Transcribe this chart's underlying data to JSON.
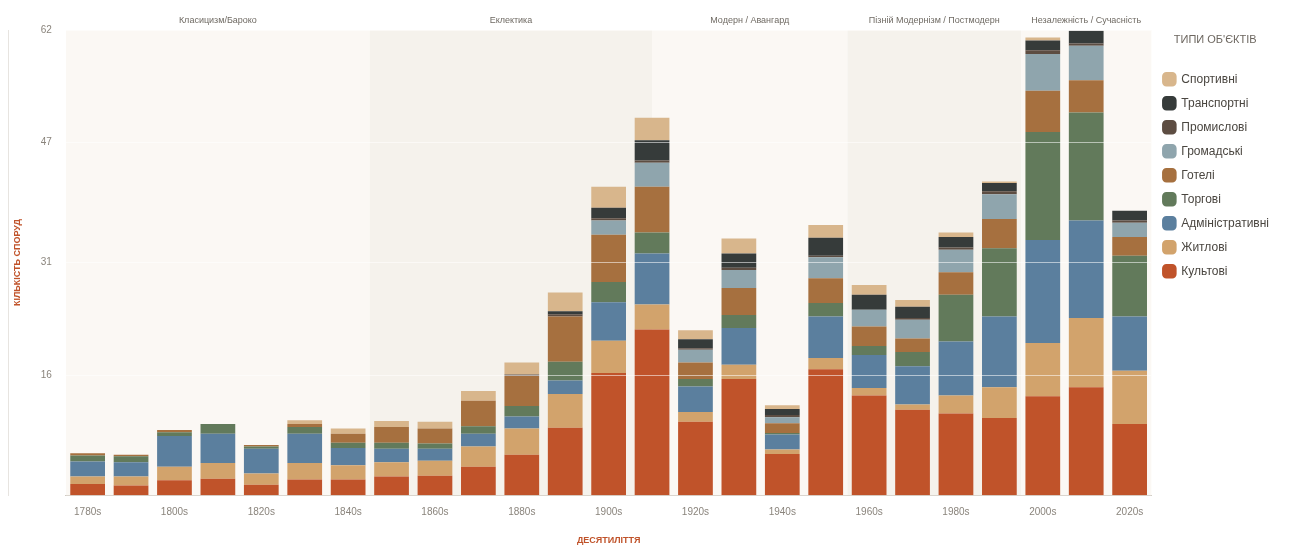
{
  "chart_data": {
    "type": "bar",
    "stacked": true,
    "xlabel": "ДЕСЯТИЛІТТЯ",
    "ylabel": "КІЛЬКІСТЬ СПОРУД",
    "legend_title": "ТИПИ ОБ'ЄКТІВ",
    "legend": "right",
    "grid": "y",
    "x": [
      1780,
      1790,
      1800,
      1810,
      1820,
      1830,
      1840,
      1850,
      1860,
      1870,
      1880,
      1890,
      1900,
      1910,
      1920,
      1930,
      1940,
      1950,
      1960,
      1970,
      1980,
      1990,
      2000,
      2010,
      2020
    ],
    "xlim": [
      1775,
      2025
    ],
    "xticks": [
      {
        "value": 1780,
        "label": "1780s"
      },
      {
        "value": 1800,
        "label": "1800s"
      },
      {
        "value": 1820,
        "label": "1820s"
      },
      {
        "value": 1840,
        "label": "1840s"
      },
      {
        "value": 1860,
        "label": "1860s"
      },
      {
        "value": 1880,
        "label": "1880s"
      },
      {
        "value": 1900,
        "label": "1900s"
      },
      {
        "value": 1920,
        "label": "1920s"
      },
      {
        "value": 1940,
        "label": "1940s"
      },
      {
        "value": 1960,
        "label": "1960s"
      },
      {
        "value": 1980,
        "label": "1980s"
      },
      {
        "value": 2000,
        "label": "2000s"
      },
      {
        "value": 2020,
        "label": "2020s"
      }
    ],
    "ylim": [
      0,
      62
    ],
    "yticks": [
      16,
      31,
      47,
      62
    ],
    "bands": [
      {
        "axis": "x",
        "from": 1775,
        "to": 1845,
        "label": "Класицизм/Бароко",
        "color": "#fbf8f4"
      },
      {
        "axis": "x",
        "from": 1845,
        "to": 1910,
        "label": "Еклектика",
        "color": "#f5f2ec"
      },
      {
        "axis": "x",
        "from": 1910,
        "to": 1955,
        "label": "Модерн / Авангард",
        "color": "#fbf8f4"
      },
      {
        "axis": "x",
        "from": 1955,
        "to": 1995,
        "label": "Пізній Модернізм / Постмодерн",
        "color": "#f5f2ec"
      },
      {
        "axis": "x",
        "from": 1995,
        "to": 2025,
        "label": "Незалежність / Сучасність",
        "color": "#fbf8f4"
      }
    ],
    "series": [
      {
        "name": "Культові",
        "color": "#c0532a",
        "values": [
          1.5,
          1.3,
          2.0,
          2.2,
          1.4,
          2.1,
          2.1,
          2.5,
          2.6,
          3.8,
          5.4,
          9.0,
          16.3,
          22.1,
          9.8,
          15.5,
          5.5,
          16.8,
          13.3,
          11.4,
          10.9,
          10.3,
          13.2,
          14.4,
          9.5
        ]
      },
      {
        "name": "Житлові",
        "color": "#d2a36c",
        "values": [
          1.0,
          1.2,
          1.8,
          2.1,
          1.5,
          2.2,
          1.9,
          1.9,
          2.0,
          2.7,
          3.5,
          4.5,
          4.3,
          3.3,
          1.3,
          1.9,
          0.6,
          1.5,
          1.0,
          0.7,
          2.4,
          4.1,
          7.1,
          9.2,
          7.1
        ]
      },
      {
        "name": "Адміністративні",
        "color": "#5b7f9e",
        "values": [
          2.0,
          1.9,
          4.1,
          3.9,
          3.3,
          3.9,
          2.3,
          1.8,
          1.6,
          1.7,
          1.6,
          1.8,
          5.1,
          6.8,
          3.4,
          4.9,
          2.0,
          5.5,
          4.4,
          5.1,
          7.2,
          9.4,
          13.7,
          13.0,
          7.2
        ]
      },
      {
        "name": "Торгові",
        "color": "#627a5b",
        "values": [
          0.8,
          0.8,
          0.5,
          1.3,
          0.3,
          0.9,
          0.7,
          0.8,
          0.7,
          1.0,
          1.4,
          2.5,
          2.7,
          2.8,
          1.0,
          1.7,
          0.2,
          1.8,
          1.2,
          1.9,
          6.2,
          9.1,
          14.4,
          14.4,
          8.1
        ]
      },
      {
        "name": "Готелі",
        "color": "#a6703f",
        "values": [
          0.3,
          0.2,
          0.3,
          0,
          0.2,
          0.4,
          1.2,
          2.1,
          2.0,
          3.4,
          4.0,
          6.0,
          6.3,
          6.1,
          2.2,
          3.6,
          1.3,
          3.3,
          2.6,
          1.8,
          3.0,
          3.9,
          5.5,
          4.3,
          2.5
        ]
      },
      {
        "name": "Громадські",
        "color": "#8fa5ad",
        "values": [
          0,
          0,
          0,
          0,
          0,
          0,
          0,
          0,
          0,
          0,
          0,
          0,
          1.9,
          3.2,
          1.7,
          2.4,
          0.8,
          2.8,
          2.2,
          2.5,
          3.0,
          3.3,
          4.9,
          4.6,
          1.9
        ]
      },
      {
        "name": "Промислові",
        "color": "#5d4d42",
        "values": [
          0,
          0,
          0,
          0,
          0,
          0,
          0,
          0,
          0,
          0,
          0.2,
          0.3,
          0.3,
          0.3,
          0.2,
          0.3,
          0.3,
          0.2,
          0,
          0.2,
          0.3,
          0.4,
          0.5,
          0.3,
          0.3
        ]
      },
      {
        "name": "Транспортні",
        "color": "#363b3a",
        "values": [
          0,
          0,
          0,
          0,
          0,
          0,
          0,
          0,
          0,
          0,
          0,
          0.4,
          1.4,
          2.7,
          1.2,
          1.9,
          0.8,
          2.4,
          2.0,
          1.5,
          1.4,
          1.1,
          1.3,
          1.7,
          1.3
        ]
      },
      {
        "name": "Спортивні",
        "color": "#d8b68c",
        "values": [
          0,
          0,
          0,
          0,
          0,
          0.5,
          0.7,
          0.8,
          0.9,
          1.3,
          1.6,
          2.5,
          2.8,
          3.0,
          1.2,
          2.0,
          0.5,
          1.7,
          1.3,
          0.9,
          0.6,
          0.2,
          0.4,
          0,
          0
        ]
      }
    ]
  }
}
